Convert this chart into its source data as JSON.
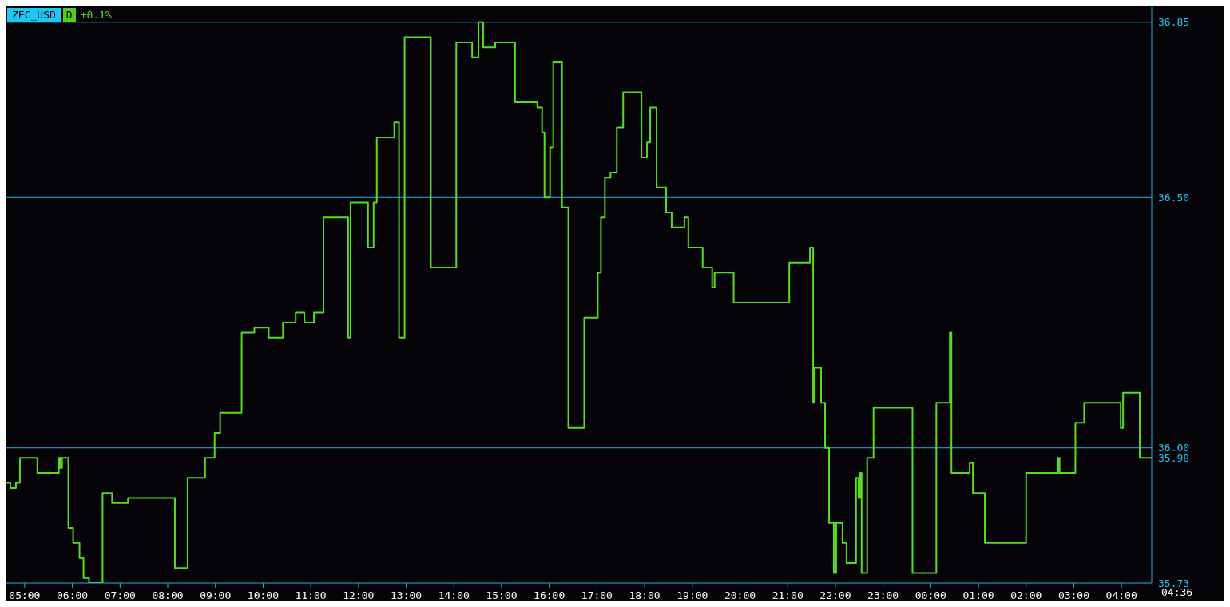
{
  "chart_data": {
    "type": "step",
    "title": "ZEC_USD",
    "annotations": [
      "D",
      "+0.1%",
      "04:36"
    ],
    "x": [
      "2000-01-01T04:37",
      "2000-01-01T04:42",
      "2000-01-01T04:49",
      "2000-01-01T04:54",
      "2000-01-01T05:16",
      "2000-01-01T05:43",
      "2000-01-01T05:45",
      "2000-01-01T05:47",
      "2000-01-01T05:55",
      "2000-01-01T06:01",
      "2000-01-01T06:09",
      "2000-01-01T06:14",
      "2000-01-01T06:21",
      "2000-01-01T06:38",
      "2000-01-01T06:50",
      "2000-01-01T07:10",
      "2000-01-01T08:09",
      "2000-01-01T08:25",
      "2000-01-01T08:47",
      "2000-01-01T08:59",
      "2000-01-01T09:06",
      "2000-01-01T09:33",
      "2000-01-01T09:49",
      "2000-01-01T10:07",
      "2000-01-01T10:25",
      "2000-01-01T10:41",
      "2000-01-01T10:52",
      "2000-01-01T11:04",
      "2000-01-01T11:16",
      "2000-01-01T11:47",
      "2000-01-01T11:50",
      "2000-01-01T12:12",
      "2000-01-01T12:19",
      "2000-01-01T12:23",
      "2000-01-01T12:45",
      "2000-01-01T12:51",
      "2000-01-01T12:58",
      "2000-01-01T13:31",
      "2000-01-01T14:03",
      "2000-01-01T14:23",
      "2000-01-01T14:31",
      "2000-01-01T14:37",
      "2000-01-01T14:52",
      "2000-01-01T15:17",
      "2000-01-01T15:45",
      "2000-01-01T15:51",
      "2000-01-01T15:54",
      "2000-01-01T16:01",
      "2000-01-01T16:05",
      "2000-01-01T16:16",
      "2000-01-01T16:24",
      "2000-01-01T16:44",
      "2000-01-01T17:01",
      "2000-01-01T17:05",
      "2000-01-01T17:10",
      "2000-01-01T17:17",
      "2000-01-01T17:25",
      "2000-01-01T17:33",
      "2000-01-01T17:56",
      "2000-01-01T18:03",
      "2000-01-01T18:07",
      "2000-01-01T18:15",
      "2000-01-01T18:27",
      "2000-01-01T18:34",
      "2000-01-01T18:50",
      "2000-01-01T18:55",
      "2000-01-01T19:13",
      "2000-01-01T19:25",
      "2000-01-01T19:28",
      "2000-01-01T19:52",
      "2000-01-01T21:02",
      "2000-01-01T21:28",
      "2000-01-01T21:32",
      "2000-01-01T21:34",
      "2000-01-01T21:42",
      "2000-01-01T21:47",
      "2000-01-01T21:52",
      "2000-01-01T21:58",
      "2000-01-01T22:01",
      "2000-01-01T22:09",
      "2000-01-01T22:14",
      "2000-01-01T22:26",
      "2000-01-01T22:29",
      "2000-01-01T22:31",
      "2000-01-01T22:33",
      "2000-01-01T22:40",
      "2000-01-01T22:48",
      "2000-01-01T23:37",
      "2000-01-02T00:07",
      "2000-01-02T00:24",
      "2000-01-02T00:26",
      "2000-01-02T00:49",
      "2000-01-02T00:53",
      "2000-01-02T01:08",
      "2000-01-02T02:00",
      "2000-01-02T02:40",
      "2000-01-02T02:42",
      "2000-01-02T03:02",
      "2000-01-02T03:13",
      "2000-01-02T03:59",
      "2000-01-02T04:02",
      "2000-01-02T04:23",
      "2000-01-02T04:38"
    ],
    "series": [
      {
        "color": "#55dd22",
        "values": [
          35.93,
          35.92,
          35.93,
          35.98,
          35.95,
          35.98,
          35.96,
          35.98,
          35.84,
          35.81,
          35.78,
          35.74,
          35.73,
          35.91,
          35.89,
          35.9,
          35.76,
          35.94,
          35.98,
          36.03,
          36.07,
          36.23,
          36.24,
          36.22,
          36.25,
          36.27,
          36.25,
          36.27,
          36.46,
          36.22,
          36.49,
          36.4,
          36.49,
          36.62,
          36.65,
          36.22,
          36.82,
          36.36,
          36.81,
          36.78,
          36.85,
          36.8,
          36.81,
          36.69,
          36.68,
          36.63,
          36.5,
          36.6,
          36.77,
          36.48,
          36.04,
          36.26,
          36.35,
          36.46,
          36.54,
          36.55,
          36.64,
          36.71,
          36.58,
          36.61,
          36.68,
          36.52,
          36.47,
          36.44,
          36.46,
          36.4,
          36.36,
          36.32,
          36.35,
          36.29,
          36.37,
          36.4,
          36.09,
          36.16,
          36.09,
          36.0,
          35.85,
          35.75,
          35.85,
          35.81,
          35.77,
          35.94,
          35.9,
          35.95,
          35.75,
          35.98,
          36.08,
          35.75,
          36.09,
          36.23,
          35.95,
          35.97,
          35.91,
          35.81,
          35.95,
          35.98,
          35.95,
          36.05,
          36.09,
          36.04,
          36.11,
          35.98,
          35.98
        ]
      }
    ],
    "xlim": [
      "2000-01-01T04:37",
      "2000-01-02T04:38"
    ],
    "xticks": [
      {
        "value": "2000-01-01T05:00",
        "label": "05:00"
      },
      {
        "value": "2000-01-01T06:00",
        "label": "06:00"
      },
      {
        "value": "2000-01-01T07:00",
        "label": "07:00"
      },
      {
        "value": "2000-01-01T08:00",
        "label": "08:00"
      },
      {
        "value": "2000-01-01T09:00",
        "label": "09:00"
      },
      {
        "value": "2000-01-01T10:00",
        "label": "10:00"
      },
      {
        "value": "2000-01-01T11:00",
        "label": "11:00"
      },
      {
        "value": "2000-01-01T12:00",
        "label": "12:00"
      },
      {
        "value": "2000-01-01T13:00",
        "label": "13:00"
      },
      {
        "value": "2000-01-01T14:00",
        "label": "14:00"
      },
      {
        "value": "2000-01-01T15:00",
        "label": "15:00"
      },
      {
        "value": "2000-01-01T16:00",
        "label": "16:00"
      },
      {
        "value": "2000-01-01T17:00",
        "label": "17:00"
      },
      {
        "value": "2000-01-01T18:00",
        "label": "18:00"
      },
      {
        "value": "2000-01-01T19:00",
        "label": "19:00"
      },
      {
        "value": "2000-01-01T20:00",
        "label": "20:00"
      },
      {
        "value": "2000-01-01T21:00",
        "label": "21:00"
      },
      {
        "value": "2000-01-01T22:00",
        "label": "22:00"
      },
      {
        "value": "2000-01-01T23:00",
        "label": "23:00"
      },
      {
        "value": "2000-01-02T00:00",
        "label": "00:00"
      },
      {
        "value": "2000-01-02T01:00",
        "label": "01:00"
      },
      {
        "value": "2000-01-02T02:00",
        "label": "02:00"
      },
      {
        "value": "2000-01-02T03:00",
        "label": "03:00"
      },
      {
        "value": "2000-01-02T04:00",
        "label": "04:00"
      }
    ],
    "ylim": [
      35.73,
      36.88
    ],
    "yticks": [
      {
        "value": 35.73,
        "label": "35.73"
      },
      {
        "value": 35.98,
        "label": "35.98"
      },
      {
        "value": 36,
        "label": "36.00"
      },
      {
        "value": 36.5,
        "label": "36.50"
      },
      {
        "value": 36.85,
        "label": "36.85"
      }
    ],
    "ref_lines": [
      {
        "axis": "y",
        "value": 36.85,
        "color": "#1eb4e6"
      },
      {
        "axis": "y",
        "value": 36.5,
        "color": "#1eb4e6"
      },
      {
        "axis": "y",
        "value": 36,
        "color": "#1eb4e6"
      }
    ],
    "grid": false,
    "legend": false,
    "marker": "none",
    "line_style": "solid"
  }
}
